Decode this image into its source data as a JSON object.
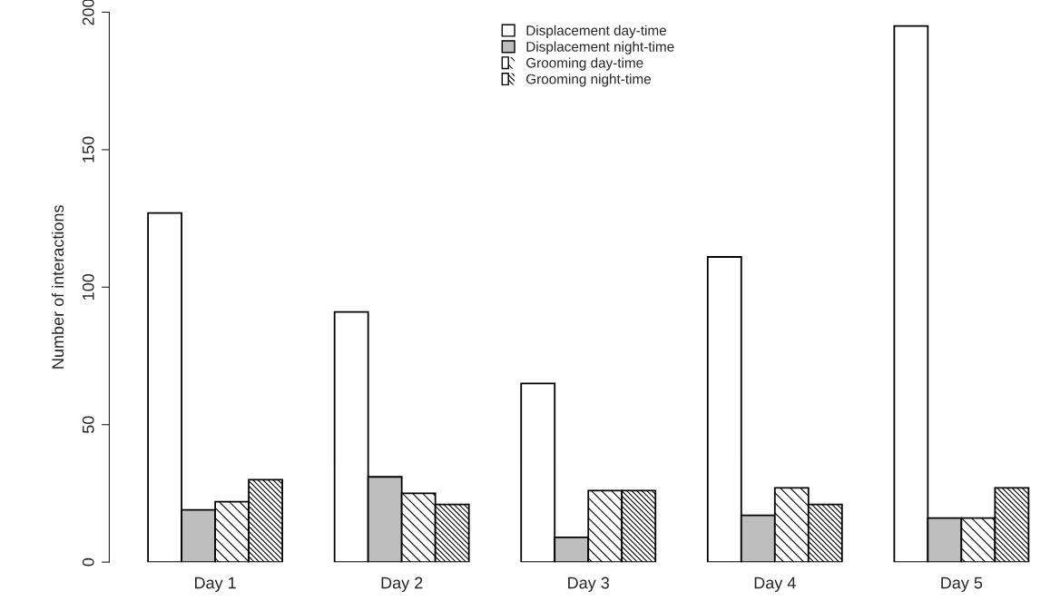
{
  "chart_data": {
    "type": "bar",
    "ylabel": "Number of interactions",
    "categories": [
      "Day 1",
      "Day 2",
      "Day 3",
      "Day 4",
      "Day 5"
    ],
    "series": [
      {
        "name": "Displacement day-time",
        "color": "#ffffff",
        "values": [
          127,
          91,
          65,
          111,
          195
        ]
      },
      {
        "name": "Displacement night-time",
        "color": "#bebebe",
        "values": [
          19,
          31,
          9,
          17,
          16
        ]
      },
      {
        "name": "Grooming day-time",
        "color": "#ffffff",
        "values": [
          22,
          25,
          26,
          27,
          16
        ]
      },
      {
        "name": "Grooming night-time",
        "color": "#ffffff",
        "values": [
          30,
          21,
          26,
          21,
          27
        ]
      }
    ],
    "ylim": [
      0,
      200
    ],
    "yticks": [
      0,
      50,
      100,
      150,
      200
    ],
    "grid": false,
    "legend": "top"
  }
}
